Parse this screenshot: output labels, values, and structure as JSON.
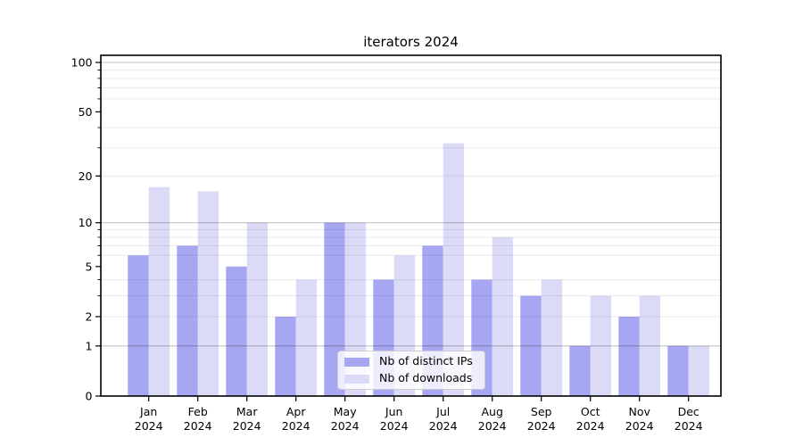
{
  "chart_data": {
    "type": "bar",
    "title": "iterators 2024",
    "categories": [
      "Jan",
      "Feb",
      "Mar",
      "Apr",
      "May",
      "Jun",
      "Jul",
      "Aug",
      "Sep",
      "Oct",
      "Nov",
      "Dec"
    ],
    "x_year": "2024",
    "series": [
      {
        "name": "Nb of distinct IPs",
        "color": "#a6a6f2",
        "values": [
          6,
          7,
          5,
          2,
          10,
          4,
          7,
          4,
          3,
          1,
          2,
          1
        ]
      },
      {
        "name": "Nb of downloads",
        "color": "#dbdbf8",
        "values": [
          17,
          16,
          10,
          4,
          10,
          6,
          32,
          8,
          4,
          3,
          3,
          1
        ]
      }
    ],
    "yscale": "log1p",
    "yticks": [
      0,
      1,
      2,
      5,
      10,
      20,
      50,
      100
    ],
    "major_grid_values": [
      1,
      10,
      100
    ],
    "minor_grid_values": [
      2,
      3,
      4,
      6,
      7,
      8,
      9,
      20,
      30,
      40,
      60,
      70,
      80,
      90
    ],
    "ylim": [
      0,
      110
    ],
    "grid": "both",
    "legend_position": "lower-center-inside",
    "xlabel": "",
    "ylabel": ""
  },
  "colors": {
    "major_grid": "rgba(0,0,0,0.235)",
    "minor_grid": "rgba(0,0,0,0.08)",
    "spine": "#000000",
    "text": "#000000",
    "legend_border": "#cccccc"
  }
}
